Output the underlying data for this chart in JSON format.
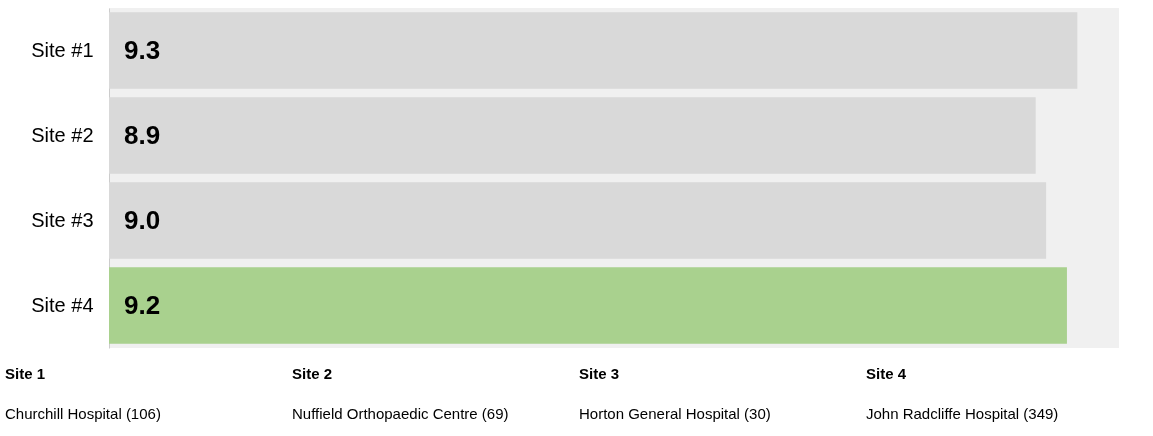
{
  "chart_data": {
    "type": "bar",
    "orientation": "horizontal",
    "categories": [
      "Site #1",
      "Site #2",
      "Site #3",
      "Site #4"
    ],
    "values": [
      9.3,
      8.9,
      9.0,
      9.2
    ],
    "colors": [
      "#d9d9d9",
      "#d9d9d9",
      "#d9d9d9",
      "#a9d18e"
    ],
    "xlim": [
      0,
      9.7
    ],
    "value_labels": [
      "9.3",
      "8.9",
      "9.0",
      "9.2"
    ],
    "tick_labels": "y",
    "grid": false,
    "legend": false,
    "annotations": [
      "Site 1",
      "Site 2",
      "Site 3",
      "Site 4",
      "Churchill Hospital (106)",
      "Nuffield Orthopaedic Centre (69)",
      "Horton General Hospital (30)",
      "John Radcliffe Hospital (349)"
    ]
  }
}
